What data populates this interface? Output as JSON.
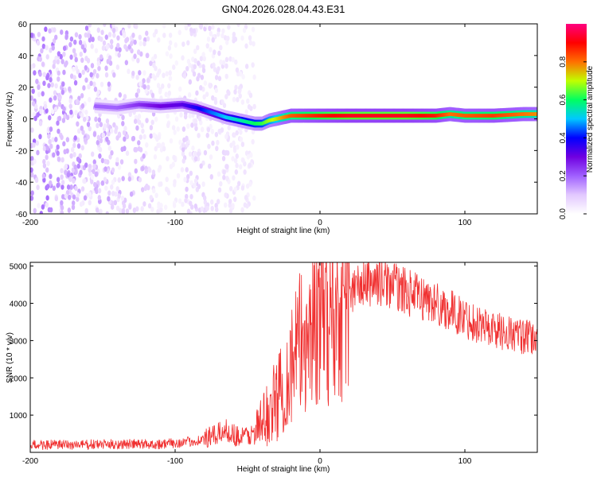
{
  "title": "GN04.2026.028.04.43.E31",
  "chart_data": [
    {
      "type": "heatmap",
      "xlabel": "Height of straight line (km)",
      "ylabel": "Frequency (Hz)",
      "xlim": [
        -200,
        150
      ],
      "ylim": [
        -60,
        60
      ],
      "xticks": [
        -200,
        -100,
        0,
        100
      ],
      "yticks": [
        -60,
        -40,
        -20,
        0,
        20,
        40,
        60
      ],
      "colorbar": {
        "label": "Normalized spectral amplitude",
        "range": [
          0,
          1
        ],
        "ticks": [
          "0.0",
          "0.2",
          "0.4",
          "0.6",
          "0.8"
        ],
        "colors": [
          "#ffffff",
          "#e2c8ff",
          "#a060ff",
          "#7000e0",
          "#0000ff",
          "#00c8ff",
          "#00ff60",
          "#c0ff00",
          "#ff7000",
          "#ff0000",
          "#ff0080"
        ]
      },
      "ridge": {
        "x": [
          -155,
          -140,
          -125,
          -110,
          -95,
          -85,
          -75,
          -65,
          -55,
          -45,
          -40,
          -35,
          -30,
          -25,
          -20,
          -10,
          0,
          20,
          40,
          60,
          80,
          90,
          100,
          120,
          140,
          150
        ],
        "freq": [
          8,
          7,
          9,
          8,
          9,
          7,
          4,
          1,
          -1,
          -3,
          -3,
          -1,
          0,
          1,
          2,
          2,
          2,
          2,
          2,
          2,
          2,
          3,
          2,
          2,
          3,
          3
        ],
        "amplitude": [
          0.2,
          0.2,
          0.25,
          0.3,
          0.32,
          0.38,
          0.45,
          0.5,
          0.55,
          0.6,
          0.62,
          0.68,
          0.72,
          0.78,
          0.82,
          0.85,
          0.88,
          0.92,
          0.92,
          0.92,
          0.88,
          0.8,
          0.82,
          0.85,
          0.8,
          0.78
        ]
      },
      "noise_region": {
        "x_range": [
          -200,
          -45
        ],
        "amplitude_max": 0.2
      }
    },
    {
      "type": "line",
      "xlabel": "Height of straight line (km)",
      "ylabel": "SNR (10 * v/v)",
      "xlim": [
        -200,
        150
      ],
      "ylim": [
        0,
        5100
      ],
      "xticks": [
        -200,
        -100,
        0,
        100
      ],
      "yticks": [
        1000,
        2000,
        3000,
        4000,
        5000
      ],
      "color": "#f03030",
      "series": {
        "x": [
          -200,
          -170,
          -140,
          -110,
          -90,
          -75,
          -65,
          -55,
          -45,
          -38,
          -32,
          -25,
          -20,
          -15,
          -10,
          -5,
          0,
          5,
          10,
          15,
          20,
          30,
          40,
          50,
          60,
          80,
          100,
          120,
          140,
          150
        ],
        "y": [
          200,
          200,
          220,
          220,
          280,
          400,
          600,
          400,
          500,
          900,
          1300,
          1800,
          2300,
          2800,
          3100,
          3500,
          3700,
          3600,
          3500,
          4000,
          4300,
          4500,
          4600,
          4500,
          4300,
          4000,
          3600,
          3300,
          3100,
          3000
        ]
      }
    }
  ]
}
